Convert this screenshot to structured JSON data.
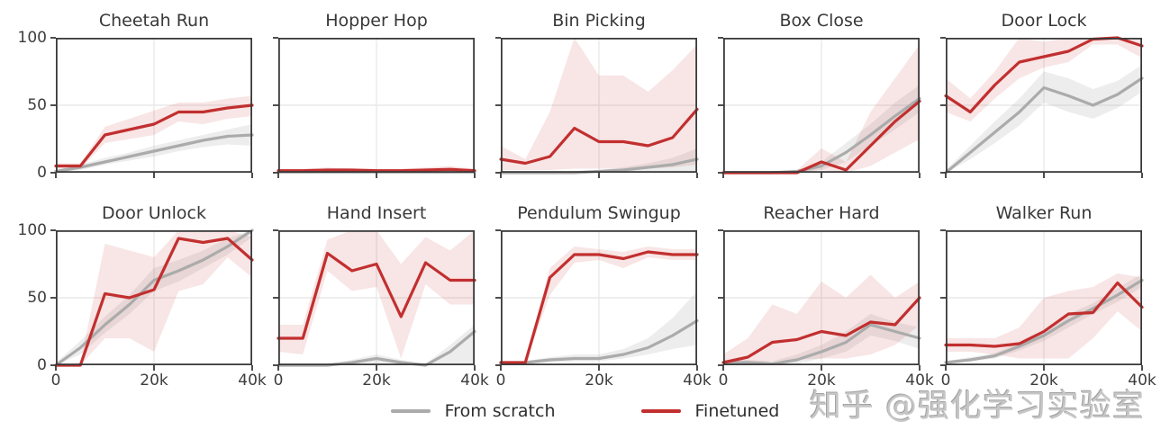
{
  "legend": {
    "from_scratch_label": "From scratch",
    "finetuned_label": "Finetuned"
  },
  "watermark": {
    "text": "知乎 @强化学习实验室"
  },
  "colors": {
    "from_scratch_line": "#ababab",
    "from_scratch_band": "#9c9c9c",
    "finetuned_line": "#c22f2f",
    "finetuned_band": "#cb4949",
    "spine": "#3a3a3a",
    "gridline": "#e9e9e9",
    "title_text": "#383838",
    "tick_text": "#3d3d3d",
    "watermark_text": "#c6c6c6"
  },
  "axes": {
    "ylim": [
      0,
      100
    ],
    "ytick_values": [
      100,
      50,
      0
    ],
    "yticks": [
      "100",
      "50",
      "0"
    ],
    "xlim": [
      0,
      40000
    ],
    "xtick_values": [
      0,
      20000,
      40000
    ],
    "xtick_labels": [
      "0",
      "20k",
      "40k"
    ],
    "grid": true,
    "grid_y_at": 50,
    "grid_x_at": 20000
  },
  "chart_data": [
    {
      "type": "line",
      "title": "Cheetah Run",
      "x": [
        0,
        5000,
        10000,
        15000,
        20000,
        25000,
        30000,
        35000,
        40000
      ],
      "ylim": [
        0,
        100
      ],
      "series": [
        {
          "name": "From scratch",
          "values": [
            1,
            4,
            8,
            12,
            16,
            20,
            24,
            27,
            28
          ],
          "band_low": [
            0,
            2,
            6,
            9,
            12,
            16,
            19,
            21,
            20
          ],
          "band_high": [
            2,
            6,
            11,
            15,
            20,
            24,
            28,
            32,
            36
          ]
        },
        {
          "name": "Finetuned",
          "values": [
            5,
            5,
            28,
            32,
            36,
            45,
            45,
            48,
            50
          ],
          "band_low": [
            3,
            3,
            22,
            25,
            28,
            38,
            36,
            40,
            42
          ],
          "band_high": [
            7,
            7,
            34,
            40,
            46,
            52,
            52,
            55,
            57
          ]
        }
      ]
    },
    {
      "type": "line",
      "title": "Hopper Hop",
      "x": [
        0,
        5000,
        10000,
        15000,
        20000,
        25000,
        30000,
        35000,
        40000
      ],
      "ylim": [
        0,
        100
      ],
      "series": [
        {
          "name": "From scratch",
          "values": [
            0.5,
            0.5,
            0.5,
            0.5,
            0.5,
            0.5,
            0.5,
            0.5,
            0.5
          ],
          "band_low": [
            0,
            0,
            0,
            0,
            0,
            0,
            0,
            0,
            0
          ],
          "band_high": [
            1,
            1,
            1,
            1,
            1,
            1,
            1,
            1,
            1
          ]
        },
        {
          "name": "Finetuned",
          "values": [
            1.5,
            1.5,
            2,
            2,
            1.5,
            1.5,
            2,
            2.5,
            1.5
          ],
          "band_low": [
            0.5,
            0.5,
            0.5,
            0.5,
            0.5,
            0.5,
            0.5,
            0.5,
            0.5
          ],
          "band_high": [
            3,
            3,
            4,
            3,
            3,
            3,
            4,
            5,
            3
          ]
        }
      ]
    },
    {
      "type": "line",
      "title": "Bin Picking",
      "x": [
        0,
        5000,
        10000,
        15000,
        20000,
        25000,
        30000,
        35000,
        40000
      ],
      "ylim": [
        0,
        100
      ],
      "series": [
        {
          "name": "From scratch",
          "values": [
            0,
            0,
            0,
            0,
            1,
            2,
            4,
            6,
            10
          ],
          "band_low": [
            0,
            0,
            0,
            0,
            0,
            0,
            0,
            0,
            0
          ],
          "band_high": [
            1,
            1,
            1,
            1,
            2,
            4,
            7,
            11,
            18
          ]
        },
        {
          "name": "Finetuned",
          "values": [
            10,
            7,
            12,
            33,
            23,
            23,
            20,
            26,
            47
          ],
          "band_low": [
            2,
            2,
            2,
            3,
            3,
            3,
            3,
            4,
            6
          ],
          "band_high": [
            20,
            10,
            45,
            100,
            72,
            72,
            60,
            76,
            95
          ]
        }
      ]
    },
    {
      "type": "line",
      "title": "Box Close",
      "x": [
        0,
        5000,
        10000,
        15000,
        20000,
        25000,
        30000,
        35000,
        40000
      ],
      "ylim": [
        0,
        100
      ],
      "series": [
        {
          "name": "From scratch",
          "values": [
            0,
            0,
            0,
            1,
            5,
            15,
            28,
            42,
            55
          ],
          "band_low": [
            0,
            0,
            0,
            0,
            2,
            8,
            20,
            32,
            45
          ],
          "band_high": [
            0,
            0,
            0,
            2,
            8,
            22,
            36,
            52,
            65
          ]
        },
        {
          "name": "Finetuned",
          "values": [
            0,
            0,
            0,
            0,
            8,
            2,
            20,
            38,
            53
          ],
          "band_low": [
            0,
            0,
            0,
            0,
            2,
            0,
            5,
            15,
            25
          ],
          "band_high": [
            1,
            1,
            1,
            2,
            18,
            8,
            45,
            70,
            95
          ]
        }
      ]
    },
    {
      "type": "line",
      "title": "Door Lock",
      "x": [
        0,
        5000,
        10000,
        15000,
        20000,
        25000,
        30000,
        35000,
        40000
      ],
      "ylim": [
        0,
        100
      ],
      "series": [
        {
          "name": "From scratch",
          "values": [
            0,
            15,
            30,
            45,
            63,
            57,
            50,
            58,
            70
          ],
          "band_low": [
            0,
            10,
            22,
            35,
            52,
            45,
            40,
            48,
            60
          ],
          "band_high": [
            2,
            20,
            38,
            55,
            75,
            70,
            62,
            68,
            80
          ]
        },
        {
          "name": "Finetuned",
          "values": [
            57,
            45,
            65,
            82,
            86,
            90,
            99,
            100,
            94
          ],
          "band_low": [
            45,
            38,
            55,
            70,
            78,
            82,
            95,
            95,
            85
          ],
          "band_high": [
            70,
            55,
            75,
            100,
            97,
            100,
            100,
            100,
            100
          ]
        }
      ]
    },
    {
      "type": "line",
      "title": "Door Unlock",
      "x": [
        0,
        5000,
        10000,
        15000,
        20000,
        25000,
        30000,
        35000,
        40000
      ],
      "ylim": [
        0,
        100
      ],
      "series": [
        {
          "name": "From scratch",
          "values": [
            0,
            13,
            30,
            45,
            63,
            70,
            78,
            88,
            100
          ],
          "band_low": [
            0,
            8,
            24,
            38,
            55,
            62,
            72,
            82,
            95
          ],
          "band_high": [
            2,
            18,
            36,
            52,
            72,
            78,
            85,
            94,
            100
          ]
        },
        {
          "name": "Finetuned",
          "values": [
            0,
            0,
            53,
            50,
            56,
            94,
            91,
            94,
            78
          ],
          "band_low": [
            0,
            0,
            20,
            20,
            10,
            55,
            60,
            80,
            65
          ],
          "band_high": [
            0,
            2,
            90,
            85,
            80,
            100,
            100,
            100,
            95
          ]
        }
      ]
    },
    {
      "type": "line",
      "title": "Hand Insert",
      "x": [
        0,
        5000,
        10000,
        15000,
        20000,
        25000,
        30000,
        35000,
        40000
      ],
      "ylim": [
        0,
        100
      ],
      "series": [
        {
          "name": "From scratch",
          "values": [
            0,
            0,
            0,
            2,
            5,
            2,
            0,
            10,
            25
          ],
          "band_low": [
            0,
            0,
            0,
            0,
            0,
            0,
            0,
            0,
            0
          ],
          "band_high": [
            1,
            1,
            1,
            4,
            8,
            4,
            1,
            15,
            30
          ]
        },
        {
          "name": "Finetuned",
          "values": [
            20,
            20,
            83,
            70,
            75,
            36,
            76,
            63,
            63
          ],
          "band_low": [
            10,
            8,
            70,
            55,
            58,
            5,
            60,
            45,
            45
          ],
          "band_high": [
            30,
            30,
            93,
            100,
            100,
            75,
            95,
            85,
            100
          ]
        }
      ]
    },
    {
      "type": "line",
      "title": "Pendulum Swingup",
      "x": [
        0,
        5000,
        10000,
        15000,
        20000,
        25000,
        30000,
        35000,
        40000
      ],
      "ylim": [
        0,
        100
      ],
      "series": [
        {
          "name": "From scratch",
          "values": [
            1,
            2,
            4,
            5,
            5,
            8,
            13,
            22,
            33
          ],
          "band_low": [
            0,
            1,
            2,
            3,
            3,
            5,
            8,
            12,
            15
          ],
          "band_high": [
            2,
            3,
            6,
            8,
            8,
            12,
            20,
            35,
            55
          ]
        },
        {
          "name": "Finetuned",
          "values": [
            2,
            2,
            65,
            82,
            82,
            79,
            84,
            82,
            82
          ],
          "band_low": [
            1,
            1,
            52,
            76,
            78,
            72,
            80,
            78,
            78
          ],
          "band_high": [
            3,
            3,
            72,
            88,
            86,
            84,
            88,
            86,
            86
          ]
        }
      ]
    },
    {
      "type": "line",
      "title": "Reacher Hard",
      "x": [
        0,
        5000,
        10000,
        15000,
        20000,
        25000,
        30000,
        35000,
        40000
      ],
      "ylim": [
        0,
        100
      ],
      "series": [
        {
          "name": "From scratch",
          "values": [
            2,
            2,
            1,
            4,
            10,
            17,
            30,
            25,
            20
          ],
          "band_low": [
            0,
            0,
            0,
            1,
            5,
            10,
            22,
            18,
            12
          ],
          "band_high": [
            4,
            4,
            3,
            8,
            15,
            25,
            38,
            32,
            28
          ]
        },
        {
          "name": "Finetuned",
          "values": [
            2,
            6,
            17,
            19,
            25,
            22,
            32,
            30,
            50
          ],
          "band_low": [
            0,
            1,
            3,
            4,
            5,
            5,
            8,
            15,
            30
          ],
          "band_high": [
            8,
            20,
            45,
            38,
            62,
            50,
            67,
            50,
            62
          ]
        }
      ]
    },
    {
      "type": "line",
      "title": "Walker Run",
      "x": [
        0,
        5000,
        10000,
        15000,
        20000,
        25000,
        30000,
        35000,
        40000
      ],
      "ylim": [
        0,
        100
      ],
      "series": [
        {
          "name": "From scratch",
          "values": [
            2,
            4,
            7,
            14,
            22,
            33,
            42,
            52,
            63
          ],
          "band_low": [
            1,
            3,
            5,
            11,
            18,
            28,
            38,
            47,
            58
          ],
          "band_high": [
            3,
            6,
            9,
            17,
            26,
            38,
            46,
            57,
            68
          ]
        },
        {
          "name": "Finetuned",
          "values": [
            15,
            15,
            14,
            16,
            25,
            38,
            39,
            61,
            43
          ],
          "band_low": [
            10,
            10,
            8,
            5,
            5,
            5,
            20,
            40,
            25
          ],
          "band_high": [
            20,
            20,
            20,
            28,
            50,
            55,
            58,
            68,
            65
          ]
        }
      ]
    }
  ]
}
